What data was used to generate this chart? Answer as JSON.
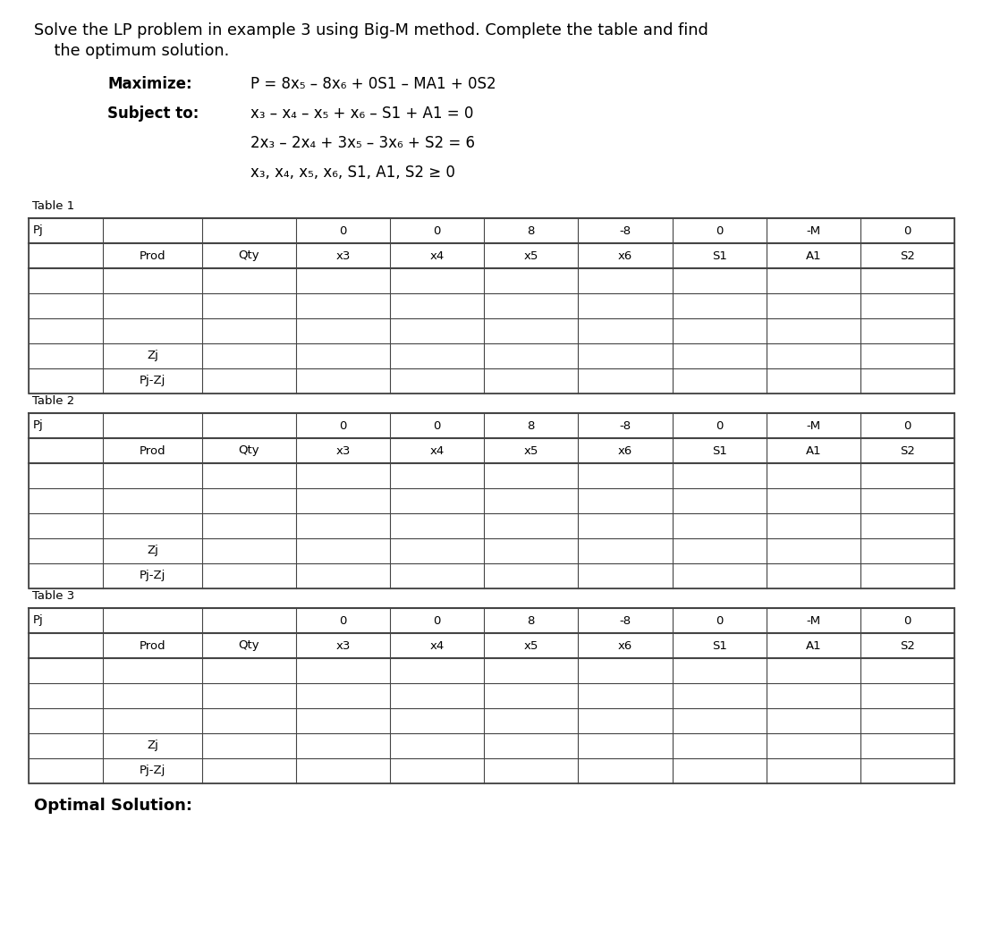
{
  "title_line1": "Solve the LP problem in example 3 using Big-M method. Complete the table and find",
  "title_line2": "    the optimum solution.",
  "maximize_label": "Maximize:",
  "subject_label": "Subject to:",
  "eq_p": "P = 8x₅ – 8x₆ + 0S1 – MA1 + 0S2",
  "eq_c1": "x₃ – x₄ – x₅ + x₆ – S1 + A1 = 0",
  "eq_c2": "2x₃ – 2x₄ + 3x₅ – 3x₆ + S2 = 6",
  "eq_c3": "x₃, x₄, x₅, x₆, S1, A1, S2 ≥ 0",
  "table_labels": [
    "Table 1",
    "Table 2",
    "Table 3"
  ],
  "pj_row_values": [
    "0",
    "0",
    "8",
    "-8",
    "0",
    "-M",
    "0"
  ],
  "col_headers": [
    "x3",
    "x4",
    "x5",
    "x6",
    "S1",
    "A1",
    "S2"
  ],
  "pj_label": "Pj",
  "prod_label": "Prod",
  "qty_label": "Qty",
  "zj_label": "Zj",
  "pjzj_label": "Pj-Zj",
  "optimal_label": "Optimal Solution:",
  "bg_color": "#ffffff",
  "line_color": "#444444"
}
